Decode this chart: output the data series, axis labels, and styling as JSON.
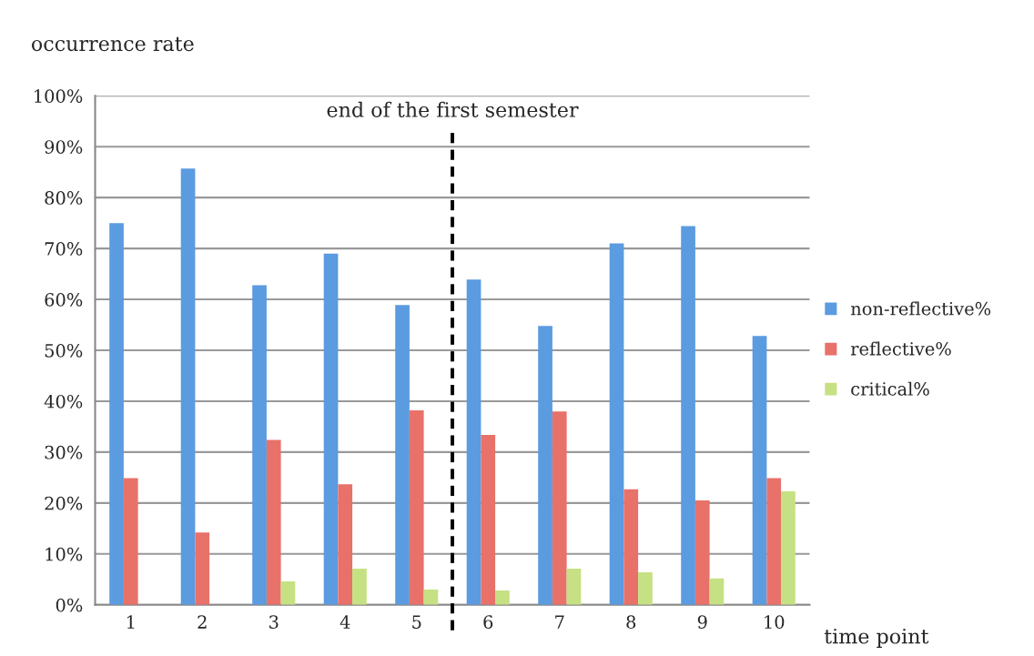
{
  "chart_data": {
    "type": "bar",
    "ylabel": "occurrence rate",
    "xlabel": "time point",
    "categories": [
      "1",
      "2",
      "3",
      "4",
      "5",
      "6",
      "7",
      "8",
      "9",
      "10"
    ],
    "series": [
      {
        "name": "non-reflective%",
        "color": "#5b9be0",
        "values": [
          75.0,
          85.7,
          62.8,
          69.0,
          58.9,
          63.9,
          54.8,
          71.0,
          74.4,
          52.8
        ]
      },
      {
        "name": "reflective%",
        "color": "#e8716a",
        "values": [
          24.9,
          14.2,
          32.4,
          23.7,
          38.2,
          33.4,
          38.0,
          22.7,
          20.5,
          24.9
        ]
      },
      {
        "name": "critical%",
        "color": "#c5e183",
        "values": [
          0,
          0,
          4.6,
          7.1,
          3.0,
          2.8,
          7.1,
          6.4,
          5.2,
          22.3
        ]
      }
    ],
    "ylim": [
      0,
      100
    ],
    "yticks": [
      {
        "value": 0,
        "label": "0%"
      },
      {
        "value": 10,
        "label": "10%"
      },
      {
        "value": 20,
        "label": "20%"
      },
      {
        "value": 30,
        "label": "30%"
      },
      {
        "value": 40,
        "label": "40%"
      },
      {
        "value": 50,
        "label": "50%"
      },
      {
        "value": 60,
        "label": "60%"
      },
      {
        "value": 70,
        "label": "70%"
      },
      {
        "value": 80,
        "label": "80%"
      },
      {
        "value": 90,
        "label": "90%"
      },
      {
        "value": 100,
        "label": "100%"
      }
    ],
    "annotations": [
      "end of the first semester"
    ],
    "grid": "y",
    "legend": "right"
  }
}
